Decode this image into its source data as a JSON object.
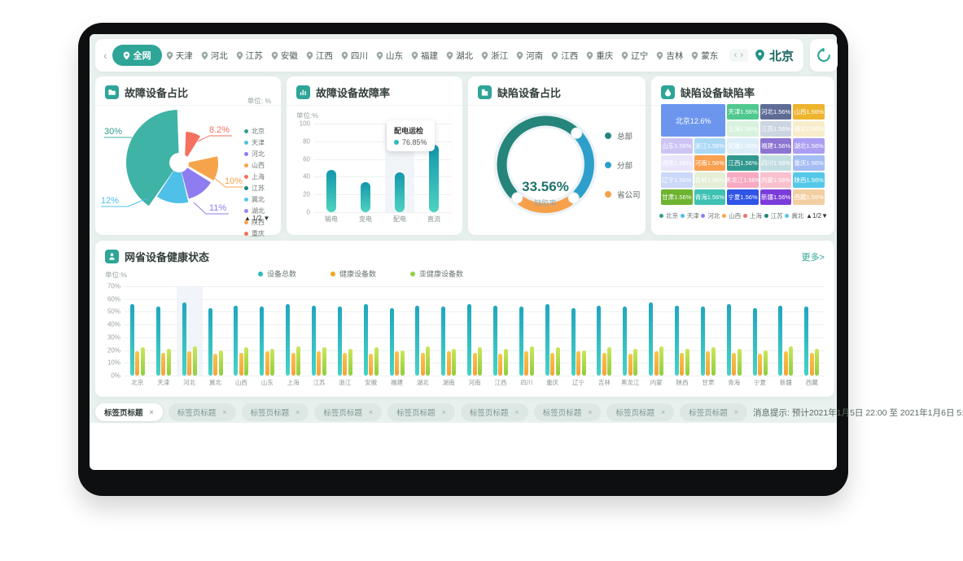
{
  "nav": {
    "scroll_left": "‹",
    "active_region": "全网",
    "regions": [
      "天津",
      "河北",
      "江苏",
      "安徽",
      "江西",
      "四川",
      "山东",
      "福建",
      "湖北",
      "浙江",
      "河南",
      "江西",
      "重庆",
      "辽宁",
      "吉林",
      "蒙东"
    ],
    "pager_prev": "‹",
    "pager_next": "›",
    "city": "北京"
  },
  "panels": {
    "fault_share": {
      "title": "故障设备占比",
      "unit": "单位: %",
      "slices": [
        {
          "name": "北京",
          "label": "30%",
          "value": 30,
          "color": "#3fb3a5"
        },
        {
          "name": "天津",
          "label": "12%",
          "value": 12,
          "color": "#4fc0e8"
        },
        {
          "name": "河北",
          "label": "11%",
          "value": 11,
          "color": "#8e7cf0"
        },
        {
          "name": "山西",
          "label": "10%",
          "value": 10,
          "color": "#f6a44c"
        },
        {
          "name": "上海",
          "label": "8.2%",
          "value": 8.2,
          "color": "#f4705f"
        }
      ],
      "legend": [
        {
          "label": "北京",
          "color": "#2e9d8f"
        },
        {
          "label": "天津",
          "color": "#4fc0e8"
        },
        {
          "label": "河北",
          "color": "#8e7cf0"
        },
        {
          "label": "山西",
          "color": "#f6a44c"
        },
        {
          "label": "上海",
          "color": "#f4705f"
        },
        {
          "label": "江苏",
          "color": "#1e8377"
        },
        {
          "label": "冀北",
          "color": "#52c8ec"
        },
        {
          "label": "湖北",
          "color": "#9a8af2"
        },
        {
          "label": "陕西",
          "color": "#f6a44c"
        },
        {
          "label": "重庆",
          "color": "#f4705f"
        }
      ],
      "pager": "▲ 1/2 ▼"
    },
    "fault_rate": {
      "title": "故障设备故障率",
      "unit": "单位:%",
      "yticks": [
        "100",
        "80",
        "60",
        "40",
        "20",
        "0"
      ],
      "categories": [
        "输电",
        "变电",
        "配电",
        "直流"
      ],
      "values": [
        48,
        34,
        45,
        76
      ],
      "tooltip": {
        "title": "配电运检",
        "value": "76.85%"
      }
    },
    "defect_share": {
      "title": "缺陷设备占比",
      "center_value": "33.56%",
      "center_label": "缺陷率",
      "legend": [
        {
          "label": "总部",
          "color": "#26857a"
        },
        {
          "label": "分部",
          "color": "#2e9fcb"
        },
        {
          "label": "省公司",
          "color": "#f6a04b"
        }
      ]
    },
    "defect_rate": {
      "title": "缺陷设备缺陷率",
      "cells": [
        {
          "label": "北京12.6%",
          "color": "#6c96ee",
          "big": true
        },
        {
          "label": "天津1.56%",
          "color": "#4fc98f"
        },
        {
          "label": "河北1.56%",
          "color": "#5e6c96"
        },
        {
          "label": "山西1.56%",
          "color": "#edb42e"
        },
        {
          "label": "上海1.56%",
          "color": "#d8f2de"
        },
        {
          "label": "江苏1.56%",
          "color": "#cbd5e2"
        },
        {
          "label": "冀北1.56%",
          "color": "#f8edcb"
        },
        {
          "label": "山东1.56%",
          "color": "#ccc5f4"
        },
        {
          "label": "浙江1.56%",
          "color": "#abd9f5"
        },
        {
          "label": "安徽1.56%",
          "color": "#ddeef8"
        },
        {
          "label": "福建1.56%",
          "color": "#8c74d2"
        },
        {
          "label": "湖北1.56%",
          "color": "#ab9ef2"
        },
        {
          "label": "湖南1.56%",
          "color": "#e9e6fb"
        },
        {
          "label": "河南1.56%",
          "color": "#f9a051"
        },
        {
          "label": "江西1.56%",
          "color": "#31998f"
        },
        {
          "label": "四川1.56%",
          "color": "#c3dee1"
        },
        {
          "label": "重庆1.56%",
          "color": "#a5bdf3"
        },
        {
          "label": "辽宁1.56%",
          "color": "#cbd8f8"
        },
        {
          "label": "吉林1.56%",
          "color": "#e4efd6"
        },
        {
          "label": "黑龙江1.56%",
          "color": "#f8a9c2"
        },
        {
          "label": "内蒙1.56%",
          "color": "#f9c0ce"
        },
        {
          "label": "陕西1.56%",
          "color": "#55c8e8"
        },
        {
          "label": "甘肃1.56%",
          "color": "#6eb430"
        },
        {
          "label": "青海1.56%",
          "color": "#3fc1b4"
        },
        {
          "label": "宁夏1.56%",
          "color": "#2f54e6"
        },
        {
          "label": "新疆1.56%",
          "color": "#7b3dd9"
        },
        {
          "label": "西藏1.56%",
          "color": "#f2cfa2"
        }
      ],
      "legend": [
        {
          "label": "北京",
          "color": "#2e9d8f"
        },
        {
          "label": "天津",
          "color": "#4fc0e8"
        },
        {
          "label": "河北",
          "color": "#8e7cf0"
        },
        {
          "label": "山西",
          "color": "#f6a44c"
        },
        {
          "label": "上海",
          "color": "#f4705f"
        },
        {
          "label": "江苏",
          "color": "#1e8377"
        },
        {
          "label": "冀北",
          "color": "#52c8ec"
        }
      ],
      "pager": "▲1/2▼"
    },
    "health": {
      "title": "网省设备健康状态",
      "more": "更多>",
      "unit": "单位:%",
      "yticks": [
        "70%",
        "60%",
        "50%",
        "40%",
        "30%",
        "20%",
        "10%",
        "0%"
      ],
      "legend": [
        {
          "label": "设备总数",
          "color": "#2fb9c0"
        },
        {
          "label": "健康设备数",
          "color": "#f5a623"
        },
        {
          "label": "亚健康设备数",
          "color": "#8fd14f"
        }
      ],
      "categories": [
        "北京",
        "天津",
        "河北",
        "冀北",
        "山西",
        "山东",
        "上海",
        "江苏",
        "浙江",
        "安徽",
        "福建",
        "湖北",
        "湖南",
        "河南",
        "江西",
        "四川",
        "重庆",
        "辽宁",
        "吉林",
        "黑龙江",
        "内蒙",
        "陕西",
        "甘肃",
        "青海",
        "宁夏",
        "新疆",
        "西藏"
      ],
      "series": [
        {
          "name": "设备总数",
          "values": [
            56,
            54,
            57,
            53,
            55,
            54,
            56,
            55,
            54,
            56,
            53,
            55,
            54,
            56,
            55,
            54,
            56,
            53,
            55,
            54,
            57,
            55,
            54,
            56,
            53,
            55,
            54
          ]
        },
        {
          "name": "健康设备数",
          "values": [
            19,
            18,
            19,
            17,
            18,
            19,
            18,
            19,
            18,
            17,
            19,
            18,
            19,
            18,
            17,
            19,
            18,
            19,
            18,
            17,
            19,
            18,
            19,
            18,
            17,
            19,
            18
          ]
        },
        {
          "name": "亚健康设备数",
          "values": [
            22,
            21,
            23,
            20,
            22,
            21,
            23,
            22,
            21,
            22,
            20,
            23,
            21,
            22,
            21,
            23,
            22,
            20,
            22,
            21,
            23,
            21,
            22,
            21,
            20,
            23,
            21
          ]
        }
      ],
      "highlight_index": 2,
      "ymax": 70
    }
  },
  "tagbar": {
    "tab_label": "标签页标题",
    "close": "×",
    "count": 9,
    "message": "消息提示: 预计2021年1月5日 22:00 至 2021年1月6日 5:00 进行系统升级"
  },
  "chart_data": [
    {
      "type": "pie",
      "title": "故障设备占比",
      "unit": "%",
      "labels": [
        "北京",
        "天津",
        "河北",
        "山西",
        "上海"
      ],
      "values": [
        30,
        12,
        11,
        10,
        8.2
      ],
      "legend": [
        "北京",
        "天津",
        "河北",
        "山西",
        "上海",
        "江苏",
        "冀北",
        "湖北",
        "陕西",
        "重庆"
      ],
      "legend_page": "1/2",
      "note": "rose/nightingale pie, labeled slices only"
    },
    {
      "type": "bar",
      "title": "故障设备故障率",
      "unit": "%",
      "categories": [
        "输电",
        "变电",
        "配电",
        "直流"
      ],
      "values": [
        48,
        34,
        45,
        76
      ],
      "ylim": [
        0,
        100
      ],
      "tooltip": {
        "series": "配电运检",
        "value": 76.85
      },
      "grid": true
    },
    {
      "type": "pie",
      "title": "缺陷设备占比",
      "labels": [
        "总部",
        "分部",
        "省公司"
      ],
      "values": [
        50,
        30,
        20
      ],
      "center_value": 33.56,
      "center_label": "缺陷率",
      "note": "donut gauge, segment sizes estimated",
      "legend_position": "right"
    },
    {
      "type": "heatmap",
      "title": "缺陷设备缺陷率",
      "note": "treemap",
      "labels": [
        "北京",
        "天津",
        "河北",
        "山西",
        "上海",
        "江苏",
        "冀北",
        "山东",
        "浙江",
        "安徽",
        "福建",
        "湖北",
        "湖南",
        "河南",
        "江西",
        "四川",
        "重庆",
        "辽宁",
        "吉林",
        "黑龙江",
        "内蒙",
        "陕西",
        "甘肃",
        "青海",
        "宁夏",
        "新疆",
        "西藏"
      ],
      "values": [
        12.6,
        1.56,
        1.56,
        1.56,
        1.56,
        1.56,
        1.56,
        1.56,
        1.56,
        1.56,
        1.56,
        1.56,
        1.56,
        1.56,
        1.56,
        1.56,
        1.56,
        1.56,
        1.56,
        1.56,
        1.56,
        1.56,
        1.56,
        1.56,
        1.56,
        1.56,
        1.56
      ],
      "legend_page": "1/2"
    },
    {
      "type": "bar",
      "title": "网省设备健康状态",
      "unit": "%",
      "ylim": [
        0,
        70
      ],
      "grid": true,
      "legend_position": "top",
      "categories": [
        "北京",
        "天津",
        "河北",
        "冀北",
        "山西",
        "山东",
        "上海",
        "江苏",
        "浙江",
        "安徽",
        "福建",
        "湖北",
        "湖南",
        "河南",
        "江西",
        "四川",
        "重庆",
        "辽宁",
        "吉林",
        "黑龙江",
        "内蒙",
        "陕西",
        "甘肃",
        "青海",
        "宁夏",
        "新疆",
        "西藏"
      ],
      "series": [
        {
          "name": "设备总数",
          "values": [
            56,
            54,
            57,
            53,
            55,
            54,
            56,
            55,
            54,
            56,
            53,
            55,
            54,
            56,
            55,
            54,
            56,
            53,
            55,
            54,
            57,
            55,
            54,
            56,
            53,
            55,
            54
          ]
        },
        {
          "name": "健康设备数",
          "values": [
            19,
            18,
            19,
            17,
            18,
            19,
            18,
            19,
            18,
            17,
            19,
            18,
            19,
            18,
            17,
            19,
            18,
            19,
            18,
            17,
            19,
            18,
            19,
            18,
            17,
            19,
            18
          ]
        },
        {
          "name": "亚健康设备数",
          "values": [
            22,
            21,
            23,
            20,
            22,
            21,
            23,
            22,
            21,
            22,
            20,
            23,
            21,
            22,
            21,
            23,
            22,
            20,
            22,
            21,
            23,
            21,
            22,
            21,
            20,
            23,
            21
          ]
        }
      ]
    }
  ]
}
